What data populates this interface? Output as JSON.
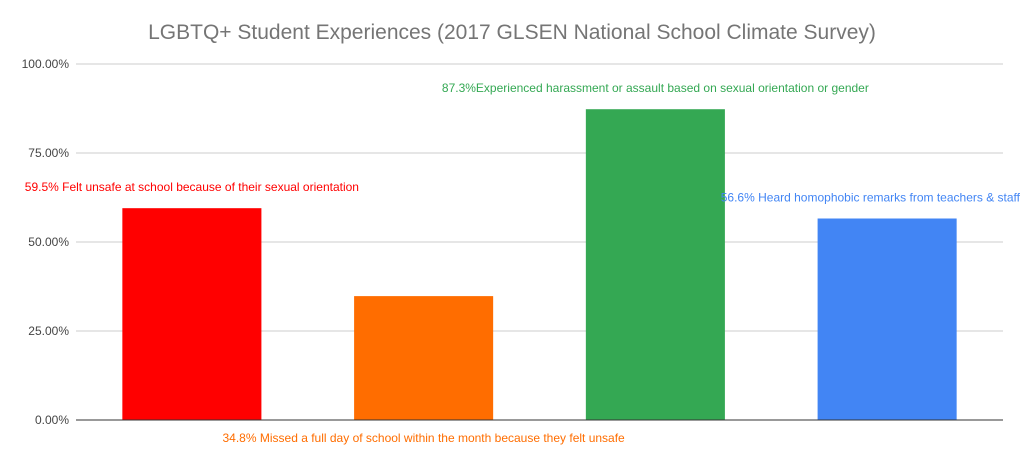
{
  "chart_data": {
    "type": "bar",
    "title": "LGBTQ+ Student Experiences (2017 GLSEN National School Climate Survey)",
    "xlabel": "",
    "ylabel": "",
    "ylim": [
      0,
      1
    ],
    "yticks": [
      0,
      0.25,
      0.5,
      0.75,
      1
    ],
    "ytick_labels": [
      "0.00%",
      "25.00%",
      "50.00%",
      "75.00%",
      "100.00%"
    ],
    "grid": true,
    "legend": "none",
    "bars": [
      {
        "value": 0.595,
        "color": "#ff0000",
        "label": "59.5% Felt unsafe at school because of their sexual orientation"
      },
      {
        "value": 0.348,
        "color": "#ff6d00",
        "label": "34.8% Missed a full day of school within the month because they felt unsafe"
      },
      {
        "value": 0.873,
        "color": "#34a853",
        "label": "87.3%Experienced harassment or assault based on sexual orientation or gender"
      },
      {
        "value": 0.566,
        "color": "#4285f4",
        "label": "56.6% Heard homophobic remarks from teachers & staff"
      }
    ]
  }
}
